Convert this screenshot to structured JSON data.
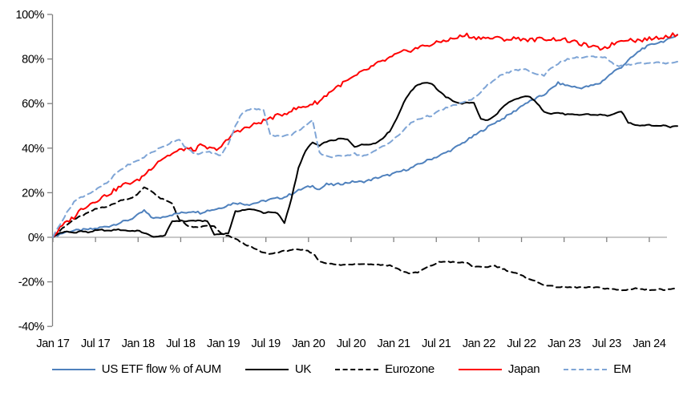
{
  "chart_data": {
    "type": "line",
    "title": "",
    "xlabel": "",
    "ylabel": "",
    "ylim": [
      -40,
      100
    ],
    "y_tick_step": 20,
    "grid": false,
    "legend_position": "bottom",
    "y_tick_labels": [
      "100%",
      "80%",
      "60%",
      "40%",
      "20%",
      "0%",
      "-20%",
      "-40%"
    ],
    "x_tick_labels": [
      "Jan 17",
      "Jul 17",
      "Jan 18",
      "Jul 18",
      "Jan 19",
      "Jul 19",
      "Jan 20",
      "Jul 20",
      "Jan 21",
      "Jul 21",
      "Jan 22",
      "Jul 22",
      "Jan 23",
      "Jul 23",
      "Jan 24"
    ],
    "x_unit": "monthly points from Jan 2017",
    "series": [
      {
        "name": "US ETF flow % of AUM",
        "color": "#4f81bd",
        "dash": "solid",
        "jitter": 0.5,
        "values": [
          0,
          1.5,
          2.5,
          3,
          3.2,
          3.5,
          3.8,
          4.5,
          5,
          6,
          7,
          8,
          9.7,
          12,
          9,
          8.5,
          9.5,
          10.2,
          10.8,
          11.2,
          11.8,
          11,
          12,
          12.5,
          13.3,
          14.5,
          15.5,
          15,
          14.8,
          15.5,
          16.2,
          17,
          17.5,
          18,
          19.5,
          21,
          22.3,
          23,
          21.5,
          23.8,
          23.5,
          24,
          24.5,
          25,
          24.8,
          25.5,
          26.5,
          27.3,
          28,
          29,
          30,
          31,
          32.5,
          34,
          35.3,
          36.5,
          38,
          39.5,
          41.5,
          43.5,
          45.5,
          47.5,
          49.5,
          51.5,
          53,
          55,
          57,
          59.5,
          61,
          62.5,
          64,
          66.5,
          69.2,
          68.3,
          67.7,
          67,
          67.5,
          68.2,
          69.2,
          72,
          74.5,
          76.4,
          79.3,
          82,
          84.7,
          86,
          87.2,
          88,
          89,
          91.2
        ]
      },
      {
        "name": "UK",
        "color": "#000000",
        "dash": "solid",
        "jitter": 0.25,
        "values": [
          0,
          2,
          2.5,
          2,
          2.8,
          2.2,
          3,
          3.3,
          2.8,
          3.5,
          3.2,
          2.8,
          3,
          2,
          0.5,
          0.2,
          1,
          7.2,
          7.4,
          7.2,
          7.5,
          7.3,
          7.4,
          1.2,
          1.5,
          1.8,
          11.5,
          12.2,
          12.5,
          12.3,
          11,
          11.2,
          10.8,
          6.5,
          17.5,
          31,
          38.9,
          42.5,
          41,
          43,
          43.5,
          44.3,
          43.8,
          40.7,
          41.5,
          41.8,
          42.2,
          44.5,
          47.6,
          53.3,
          60.5,
          65.6,
          68.5,
          69.5,
          69,
          65.6,
          63,
          61.3,
          60,
          60.3,
          60.5,
          53,
          52.5,
          54.5,
          58,
          60.5,
          62,
          63,
          63.2,
          60,
          56.5,
          55.5,
          55.9,
          55.2,
          55,
          54.8,
          55.3,
          54.9,
          55,
          54.6,
          55.2,
          56.6,
          51.5,
          50.5,
          50.2,
          50.6,
          49.8,
          50.3,
          49.5,
          50
        ]
      },
      {
        "name": "Eurozone",
        "color": "#000000",
        "dash": "dashed",
        "jitter": 0.3,
        "values": [
          0,
          3,
          5.5,
          8,
          9.5,
          11,
          12.5,
          13.5,
          14,
          15.5,
          17,
          17.5,
          19,
          22.5,
          21,
          18,
          16.5,
          15.2,
          8,
          5.5,
          4.3,
          4.6,
          5.2,
          4.8,
          1.5,
          0.5,
          -0.7,
          -2.5,
          -4,
          -5.5,
          -7,
          -7.5,
          -6.8,
          -6.2,
          -5.6,
          -5.7,
          -5.8,
          -7,
          -10.8,
          -11.5,
          -12.2,
          -12.4,
          -12.3,
          -11.9,
          -11.8,
          -12,
          -12.3,
          -12.4,
          -12.6,
          -14,
          -15.5,
          -16.2,
          -15.8,
          -14,
          -12.6,
          -11.2,
          -10.8,
          -11.2,
          -11.4,
          -11.4,
          -13.3,
          -13.5,
          -13.2,
          -12.8,
          -14,
          -15.2,
          -16.2,
          -17.5,
          -18.7,
          -20.2,
          -21.3,
          -22,
          -22.3,
          -22.4,
          -22.5,
          -22.4,
          -22.6,
          -22.5,
          -22.7,
          -23,
          -23.4,
          -23.8,
          -23.5,
          -22.8,
          -23.4,
          -23.6,
          -23.3,
          -23.5,
          -23.1,
          -22.9
        ]
      },
      {
        "name": "Japan",
        "color": "#fe0000",
        "dash": "solid",
        "jitter": 0.9,
        "values": [
          0,
          4,
          7,
          9,
          12.6,
          14.5,
          16.2,
          18,
          19.5,
          21.6,
          23.5,
          24.5,
          25.2,
          28,
          31,
          34.2,
          36,
          37.5,
          38.9,
          40,
          39,
          41,
          40,
          39.5,
          40.7,
          44,
          47.6,
          48.5,
          49.5,
          51,
          52.2,
          53.5,
          54.5,
          55.5,
          57,
          58,
          58.7,
          60,
          61,
          64,
          66.5,
          68.5,
          70.3,
          72,
          74,
          75.7,
          77.5,
          79,
          80.4,
          82,
          83.2,
          84,
          85,
          86,
          86.5,
          87.5,
          88.5,
          89,
          90,
          90.8,
          89.4,
          89.8,
          89.2,
          89.5,
          89,
          88.8,
          89.3,
          89,
          88.5,
          88.8,
          89.2,
          88.8,
          89,
          88.5,
          87.8,
          87,
          86.2,
          85.2,
          84.7,
          85.5,
          87,
          88.5,
          89,
          88.3,
          88.6,
          89,
          89.5,
          90,
          90.5,
          91.3
        ]
      },
      {
        "name": "EM",
        "color": "#7fa5d6",
        "dash": "dashed",
        "jitter": 0.4,
        "values": [
          0,
          6,
          11,
          16,
          18,
          19.5,
          21,
          23,
          25,
          28.8,
          31,
          33,
          34.2,
          36,
          38,
          39.6,
          41,
          43,
          44,
          40,
          37.8,
          37.5,
          38.5,
          37.5,
          36.8,
          42,
          50,
          56,
          57.5,
          57.5,
          57,
          46.2,
          45.5,
          45.5,
          46,
          48,
          50,
          52.2,
          37.8,
          36.5,
          36,
          36.5,
          37,
          37.5,
          36.5,
          37,
          39,
          41,
          42.5,
          45,
          48,
          51.2,
          53,
          54,
          54.7,
          56.5,
          58,
          59,
          60,
          61,
          62.5,
          65,
          68.5,
          71,
          73,
          73.9,
          75,
          75.5,
          74.5,
          73,
          72.8,
          76,
          78,
          79.5,
          80.4,
          80.6,
          80.8,
          81,
          80.6,
          80.5,
          77.2,
          77,
          77.5,
          78,
          78.2,
          78,
          78.3,
          78.1,
          78.4,
          78.6
        ]
      }
    ],
    "colors": {
      "y_axis": "#808080",
      "x_axis": "#a6a6a6",
      "tick": "#808080",
      "text": "#000000"
    }
  }
}
